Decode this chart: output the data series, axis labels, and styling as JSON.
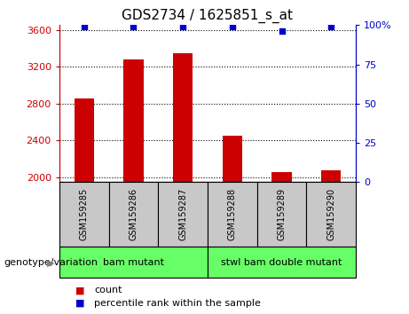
{
  "title": "GDS2734 / 1625851_s_at",
  "samples": [
    "GSM159285",
    "GSM159286",
    "GSM159287",
    "GSM159288",
    "GSM159289",
    "GSM159290"
  ],
  "counts": [
    2860,
    3280,
    3350,
    2450,
    2060,
    2080
  ],
  "percentile_ranks": [
    99,
    99,
    99,
    99,
    96,
    99
  ],
  "ylim_left": [
    1950,
    3650
  ],
  "ylim_right": [
    0,
    100
  ],
  "yticks_left": [
    2000,
    2400,
    2800,
    3200,
    3600
  ],
  "yticks_right": [
    0,
    25,
    50,
    75,
    100
  ],
  "ytick_labels_right": [
    "0",
    "25",
    "50",
    "75",
    "100%"
  ],
  "bar_color": "#CC0000",
  "dot_color": "#0000CC",
  "group1_label": "bam mutant",
  "group2_label": "stwl bam double mutant",
  "group1_samples": [
    0,
    1,
    2
  ],
  "group2_samples": [
    3,
    4,
    5
  ],
  "genotype_label": "genotype/variation",
  "legend_count_label": "count",
  "legend_percentile_label": "percentile rank within the sample",
  "bar_width": 0.4,
  "sample_box_color": "#C8C8C8",
  "group_bg": "#66FF66",
  "fontsize_title": 11,
  "fontsize_ticks": 8,
  "fontsize_sample": 7,
  "fontsize_group": 8,
  "fontsize_legend": 8,
  "fontsize_genotype": 8
}
